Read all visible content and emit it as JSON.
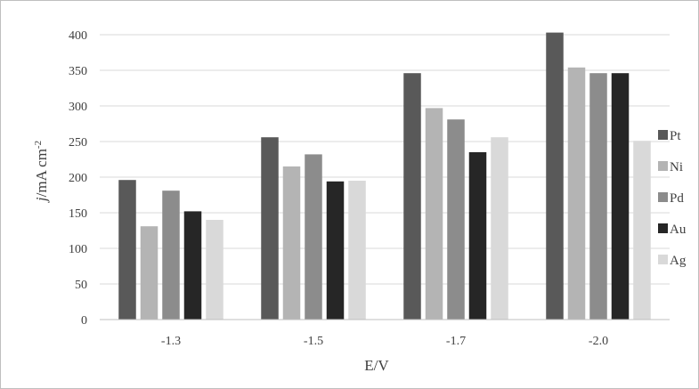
{
  "chart_data": {
    "type": "bar",
    "categories": [
      "-1.3",
      "-1.5",
      "-1.7",
      "-2.0"
    ],
    "series": [
      {
        "name": "Pt",
        "color": "#595959",
        "values": [
          196,
          256,
          346,
          403
        ]
      },
      {
        "name": "Ni",
        "color": "#b4b4b4",
        "values": [
          131,
          215,
          297,
          354
        ]
      },
      {
        "name": "Pd",
        "color": "#8c8c8c",
        "values": [
          181,
          232,
          281,
          346
        ]
      },
      {
        "name": "Au",
        "color": "#262626",
        "values": [
          152,
          194,
          235,
          346
        ]
      },
      {
        "name": "Ag",
        "color": "#d9d9d9",
        "values": [
          140,
          195,
          256,
          251
        ]
      }
    ],
    "xlabel": "E/V",
    "ylabel_italic": "j",
    "ylabel_units": "/mA cm",
    "ylabel_superscript": "-2",
    "ylim": [
      0,
      400
    ],
    "yticks": [
      "0",
      "50",
      "100",
      "150",
      "200",
      "250",
      "300",
      "350",
      "400"
    ],
    "grid": true,
    "legend_position": "right"
  }
}
